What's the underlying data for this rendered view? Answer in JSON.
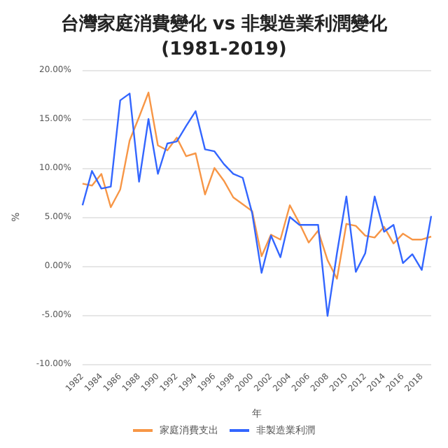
{
  "chart_data": {
    "type": "line",
    "title": "台灣家庭消費變化 vs 非製造業利潤變化",
    "subtitle": "(1981-2019)",
    "xlabel": "年",
    "ylabel": "%",
    "categories": [
      "1982",
      null,
      "1984",
      null,
      "1986",
      null,
      "1988",
      null,
      "1990",
      null,
      "1992",
      null,
      "1994",
      null,
      "1996",
      null,
      "1998",
      null,
      "2000",
      null,
      "2002",
      null,
      "2004",
      null,
      "2006",
      null,
      "2008",
      null,
      "2010",
      null,
      "2012",
      null,
      "2014",
      null,
      "2016",
      null,
      "2018",
      null
    ],
    "series": [
      {
        "name": "家庭消費支出",
        "color": "#f79646",
        "values": [
          8.4,
          8.2,
          9.4,
          6.0,
          7.8,
          12.8,
          15.2,
          17.7,
          12.3,
          11.8,
          13.1,
          11.2,
          11.5,
          7.3,
          10.0,
          8.7,
          7.0,
          6.3,
          5.6,
          1.0,
          3.2,
          2.7,
          6.2,
          4.4,
          2.4,
          3.6,
          0.6,
          -1.3,
          4.3,
          4.1,
          3.1,
          2.9,
          4.0,
          2.3,
          3.3,
          2.7,
          2.7,
          3.0
        ]
      },
      {
        "name": "非製造業利潤",
        "color": "#3366ff",
        "values": [
          6.2,
          9.7,
          7.9,
          8.1,
          16.9,
          17.6,
          8.6,
          15.0,
          9.4,
          12.5,
          12.7,
          14.3,
          15.8,
          11.9,
          11.7,
          10.4,
          9.4,
          9.0,
          5.4,
          -0.7,
          3.1,
          0.9,
          5.0,
          4.2,
          4.2,
          4.2,
          -5.1,
          1.3,
          7.1,
          -0.6,
          1.3,
          7.1,
          3.5,
          4.2,
          0.3,
          1.2,
          -0.4,
          5.1
        ]
      }
    ],
    "ylim": [
      -10,
      20
    ],
    "yticks": [
      {
        "value": -10,
        "label": "-10.00%"
      },
      {
        "value": -5,
        "label": "-5.00%"
      },
      {
        "value": 0,
        "label": "0.00%"
      },
      {
        "value": 5,
        "label": "5.00%"
      },
      {
        "value": 10,
        "label": "10.00%"
      },
      {
        "value": 15,
        "label": "15.00%"
      },
      {
        "value": 20,
        "label": "20.00%"
      }
    ],
    "grid": "y",
    "legend": "bottom",
    "marker": "none",
    "line_style": "solid"
  }
}
